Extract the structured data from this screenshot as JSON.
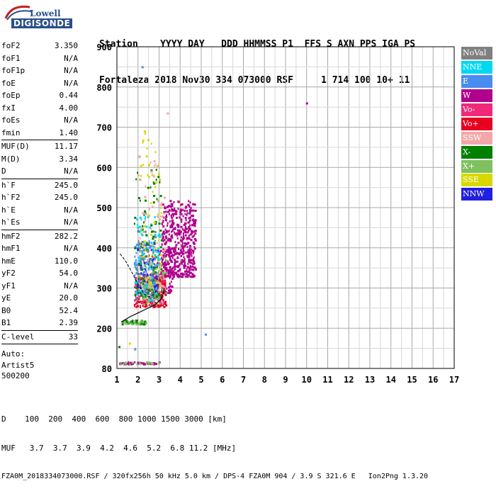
{
  "logo": {
    "line1": "Lowell",
    "line2": "DIGISONDE"
  },
  "header": {
    "labels": [
      "Station",
      "YYYY",
      "DAY",
      "DDD",
      "HHMMSS",
      "P1",
      "FFS",
      "S",
      "AXN",
      "PPS",
      "IGA",
      "PS"
    ],
    "values": [
      "Fortaleza",
      "2018",
      "Nov30",
      "334",
      "073000",
      "RSF",
      "",
      "1",
      "714",
      "100",
      "10+",
      "11"
    ],
    "line1": "Station    YYYY DAY   DDD HHMMSS P1  FFS S AXN PPS IGA PS",
    "line2": "Fortaleza 2018 Nov30 334 073000 RSF     1 714 100 10+ 11"
  },
  "params": {
    "group1": [
      {
        "name": "foF2",
        "value": "3.350"
      },
      {
        "name": "foF1",
        "value": "N/A"
      },
      {
        "name": "foF1p",
        "value": "N/A"
      },
      {
        "name": "foE",
        "value": "N/A"
      },
      {
        "name": "foEp",
        "value": "0.44"
      },
      {
        "name": "fxI",
        "value": "4.00"
      },
      {
        "name": "foEs",
        "value": "N/A"
      },
      {
        "name": "fmin",
        "value": "1.40"
      }
    ],
    "group2": [
      {
        "name": "MUF(D)",
        "value": "11.17"
      },
      {
        "name": "M(D)",
        "value": "3.34"
      },
      {
        "name": "D",
        "value": "N/A"
      }
    ],
    "group3": [
      {
        "name": "h`F",
        "value": "245.0"
      },
      {
        "name": "h`F2",
        "value": "245.0"
      },
      {
        "name": "h`E",
        "value": "N/A"
      },
      {
        "name": "h`Es",
        "value": "N/A"
      }
    ],
    "group4": [
      {
        "name": "hmF2",
        "value": "282.2"
      },
      {
        "name": "hmF1",
        "value": "N/A"
      },
      {
        "name": "hmE",
        "value": "110.0"
      },
      {
        "name": "yF2",
        "value": "54.0"
      },
      {
        "name": "yF1",
        "value": "N/A"
      },
      {
        "name": "yE",
        "value": "20.0"
      },
      {
        "name": "B0",
        "value": "52.4"
      },
      {
        "name": "B1",
        "value": "2.39"
      }
    ],
    "group5": [
      {
        "name": "C-level",
        "value": "33"
      }
    ],
    "auto": [
      "Auto:",
      "Artist5",
      "500200"
    ]
  },
  "legend": [
    {
      "label": "NoVal",
      "color": "#808080"
    },
    {
      "label": "NNE",
      "color": "#00d8f0"
    },
    {
      "label": "E",
      "color": "#4a8df0"
    },
    {
      "label": "W",
      "color": "#b0008c"
    },
    {
      "label": "Vo-",
      "color": "#f0287a"
    },
    {
      "label": "Vo+",
      "color": "#e80020"
    },
    {
      "label": "SSW",
      "color": "#f4a6a8"
    },
    {
      "label": "X-",
      "color": "#008000"
    },
    {
      "label": "X+",
      "color": "#80c060"
    },
    {
      "label": "SSE",
      "color": "#d8d800"
    },
    {
      "label": "NNW",
      "color": "#2020e0"
    }
  ],
  "chart_data": {
    "type": "scatter",
    "title": "",
    "xlabel": "",
    "ylabel": "",
    "xlim": [
      1,
      17
    ],
    "ylim": [
      80,
      900
    ],
    "x_ticks": [
      "1",
      "2",
      "3",
      "4",
      "5",
      "6",
      "7",
      "8",
      "9",
      "10",
      "11",
      "12",
      "13",
      "14",
      "15",
      "16",
      "17"
    ],
    "y_ticks": [
      "80",
      "200",
      "300",
      "400",
      "500",
      "600",
      "700",
      "800",
      "900"
    ],
    "grid": true,
    "profile": [
      {
        "x": 1.2,
        "y": 215
      },
      {
        "x": 1.6,
        "y": 228
      },
      {
        "x": 2.0,
        "y": 238
      },
      {
        "x": 2.4,
        "y": 248
      },
      {
        "x": 2.8,
        "y": 258
      },
      {
        "x": 3.05,
        "y": 270
      },
      {
        "x": 3.2,
        "y": 285
      },
      {
        "x": 3.25,
        "y": 300
      }
    ],
    "trace": [
      {
        "x": 1.15,
        "y": 385
      },
      {
        "x": 1.4,
        "y": 368
      },
      {
        "x": 1.65,
        "y": 345
      },
      {
        "x": 1.9,
        "y": 320
      },
      {
        "x": 2.1,
        "y": 300
      },
      {
        "x": 2.3,
        "y": 285
      },
      {
        "x": 2.5,
        "y": 278
      },
      {
        "x": 2.7,
        "y": 283
      },
      {
        "x": 2.9,
        "y": 295
      }
    ],
    "clusters": [
      {
        "color": "#b0008c",
        "x": [
          3.1,
          4.7
        ],
        "y": [
          330,
          520
        ],
        "n": 520
      },
      {
        "color": "#b0008c",
        "x": [
          2.6,
          3.6
        ],
        "y": [
          290,
          400
        ],
        "n": 120
      },
      {
        "color": "#e80020",
        "x": [
          1.8,
          3.3
        ],
        "y": [
          255,
          330
        ],
        "n": 220
      },
      {
        "color": "#f0287a",
        "x": [
          1.8,
          3.2
        ],
        "y": [
          260,
          340
        ],
        "n": 90
      },
      {
        "color": "#4a8df0",
        "x": [
          1.8,
          2.9
        ],
        "y": [
          280,
          420
        ],
        "n": 160
      },
      {
        "color": "#00d8f0",
        "x": [
          1.8,
          3.0
        ],
        "y": [
          270,
          480
        ],
        "n": 120
      },
      {
        "color": "#2020e0",
        "x": [
          1.9,
          2.9
        ],
        "y": [
          300,
          420
        ],
        "n": 50
      },
      {
        "color": "#008000",
        "x": [
          1.8,
          3.1
        ],
        "y": [
          280,
          600
        ],
        "n": 90
      },
      {
        "color": "#80c060",
        "x": [
          2.2,
          3.3
        ],
        "y": [
          260,
          380
        ],
        "n": 70
      },
      {
        "color": "#d8d800",
        "x": [
          2.0,
          3.1
        ],
        "y": [
          300,
          700
        ],
        "n": 70
      },
      {
        "color": "#f4a6a8",
        "x": [
          2.0,
          3.3
        ],
        "y": [
          300,
          650
        ],
        "n": 60
      },
      {
        "color": "#808080",
        "x": [
          1.9,
          2.8
        ],
        "y": [
          310,
          450
        ],
        "n": 30
      },
      {
        "color": "#008000",
        "x": [
          1.2,
          2.4
        ],
        "y": [
          212,
          222
        ],
        "n": 35
      },
      {
        "color": "#80c060",
        "x": [
          1.2,
          2.4
        ],
        "y": [
          212,
          222
        ],
        "n": 15
      },
      {
        "color": "#b0008c",
        "x": [
          1.1,
          3.0
        ],
        "y": [
          95,
          102
        ],
        "n": 45
      },
      {
        "color": "#80c060",
        "x": [
          1.1,
          3.0
        ],
        "y": [
          95,
          102
        ],
        "n": 20
      }
    ],
    "isolated": [
      {
        "x": 10.0,
        "y": 760,
        "color": "#b0008c"
      },
      {
        "x": 5.2,
        "y": 182,
        "color": "#4a8df0"
      },
      {
        "x": 2.2,
        "y": 850,
        "color": "#4a8df0"
      },
      {
        "x": 1.1,
        "y": 145,
        "color": "#008000"
      },
      {
        "x": 1.6,
        "y": 155,
        "color": "#d8d800"
      },
      {
        "x": 1.85,
        "y": 138,
        "color": "#4a8df0"
      },
      {
        "x": 3.4,
        "y": 735,
        "color": "#f4a6a8"
      }
    ]
  },
  "footer": {
    "line1": "D    100  200  400  600  800 1000 1500 3000 [km]",
    "line2": "MUF   3.7  3.7  3.9  4.2  4.6  5.2  6.8 11.2 [MHz]",
    "line3": "FZA0M_2018334073000.RSF / 320fx256h 50 kHz 5.0 km / DPS-4 FZA0M 904 / 3.9 S 321.6 E   Ion2Png 1.3.20"
  }
}
